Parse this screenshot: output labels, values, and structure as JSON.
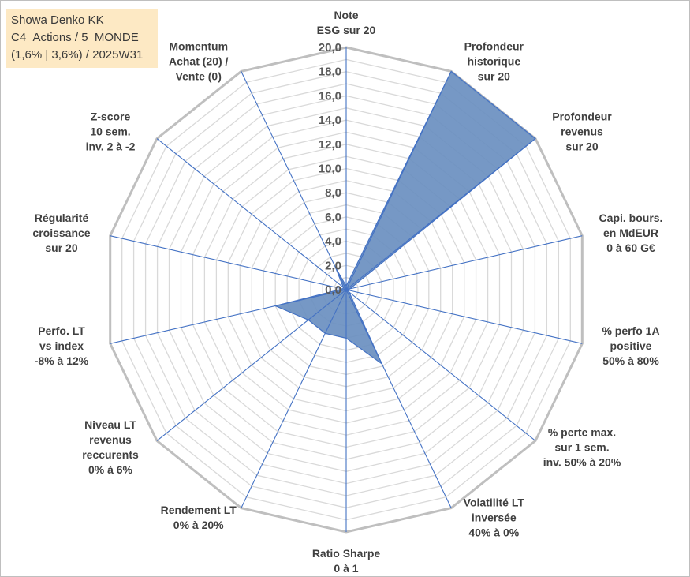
{
  "title_box": {
    "line1": "Showa Denko KK",
    "line2": "C4_Actions / 5_MONDE",
    "line3": "(1,6% | 3,6%) / 2025W31"
  },
  "colors": {
    "fill": "#6a8fc0",
    "stroke": "#4472c4",
    "axis": "#4472c4",
    "grid": "#d9d9d9",
    "outer": "#bfbfbf",
    "title_bg": "#fde9c4"
  },
  "chart_data": {
    "type": "radar",
    "rlim": [
      0,
      20
    ],
    "ticks": [
      "0,0",
      "2,0",
      "4,0",
      "6,0",
      "8,0",
      "10,0",
      "12,0",
      "14,0",
      "16,0",
      "18,0",
      "20,0"
    ],
    "gridlines": true,
    "axes": [
      [
        "Note",
        "ESG sur 20"
      ],
      [
        "Profondeur",
        "historique",
        "sur 20"
      ],
      [
        "Profondeur",
        "revenus",
        "sur 20"
      ],
      [
        "Capi. bours.",
        "en MdEUR",
        "0 à 60 G€"
      ],
      [
        "% perfo 1A",
        "positive",
        "50% à 80%"
      ],
      [
        "% perte max.",
        "sur 1 sem.",
        "inv. 50% à 20%"
      ],
      [
        "Volatilité LT",
        "inversée",
        "40% à 0%"
      ],
      [
        "Ratio Sharpe",
        "0 à 1"
      ],
      [
        "Rendement LT",
        "0% à 20%"
      ],
      [
        "Niveau LT",
        "revenus",
        "reccurents",
        "0% à 6%"
      ],
      [
        "Perfo. LT",
        "vs index",
        "-8% à 12%"
      ],
      [
        "Régularité",
        "croissance",
        "sur 20"
      ],
      [
        "Z-score",
        "10 sem.",
        "inv. 2 à -2"
      ],
      [
        "Momentum",
        "Achat (20) /",
        "Vente (0)"
      ]
    ],
    "values": [
      0.3,
      20.0,
      20.0,
      0.3,
      0.2,
      0.3,
      6.8,
      4.0,
      4.0,
      4.0,
      6.0,
      0.3,
      0.3,
      2.0
    ]
  }
}
